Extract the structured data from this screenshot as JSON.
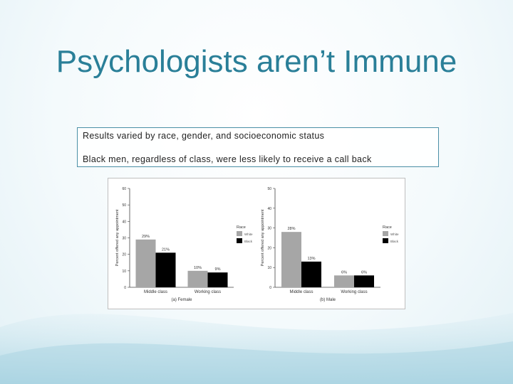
{
  "slide": {
    "title": "Psychologists aren’t Immune",
    "bullets": [
      "Results varied by race, gender, and socioeconomic status",
      "Black men, regardless of class, were less likely to receive a call back"
    ]
  },
  "colors": {
    "title": "#2a7f98",
    "white_bar": "#a6a6a6",
    "black_bar": "#000000"
  },
  "chart_data": [
    {
      "type": "bar",
      "title": "",
      "caption": "(a) Female",
      "ylabel": "Percent offered any appointment",
      "xlabel": "",
      "ylim": [
        0,
        60
      ],
      "yticks": [
        0,
        10,
        20,
        30,
        40,
        50,
        60
      ],
      "categories": [
        "Middle class",
        "Working class"
      ],
      "series": [
        {
          "name": "White",
          "color": "#a6a6a6",
          "values": [
            29,
            10
          ]
        },
        {
          "name": "Black",
          "color": "#000000",
          "values": [
            21,
            9
          ]
        }
      ],
      "data_labels": [
        [
          "29%",
          "10%"
        ],
        [
          "21%",
          "9%"
        ]
      ],
      "legend": {
        "title": "Race",
        "position": "right"
      }
    },
    {
      "type": "bar",
      "title": "",
      "caption": "(b) Male",
      "ylabel": "Percent offered any appointment",
      "xlabel": "",
      "ylim": [
        0,
        50
      ],
      "yticks": [
        0,
        10,
        20,
        30,
        40,
        50
      ],
      "categories": [
        "Middle class",
        "Working class"
      ],
      "series": [
        {
          "name": "White",
          "color": "#a6a6a6",
          "values": [
            28,
            6
          ]
        },
        {
          "name": "Black",
          "color": "#000000",
          "values": [
            13,
            6
          ]
        }
      ],
      "data_labels": [
        [
          "28%",
          "6%"
        ],
        [
          "13%",
          "6%"
        ]
      ],
      "legend": {
        "title": "Race",
        "position": "right"
      }
    }
  ]
}
